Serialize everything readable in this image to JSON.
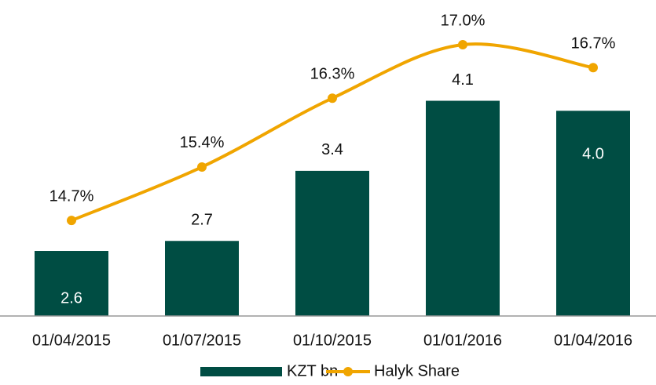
{
  "chart_data": {
    "type": "bar_line",
    "categories": [
      "01/04/2015",
      "01/07/2015",
      "01/10/2015",
      "01/01/2016",
      "01/04/2016"
    ],
    "series": [
      {
        "name": "KZT bn",
        "type": "bar",
        "color": "#004d43",
        "values": [
          2.6,
          2.7,
          3.4,
          4.1,
          4.0
        ],
        "value_labels": [
          "2.6",
          "2.7",
          "3.4",
          "4.1",
          "4.0"
        ]
      },
      {
        "name": "Halyk Share",
        "type": "line",
        "axis": "y2",
        "color": "#f0a500",
        "values": [
          14.7,
          15.4,
          16.3,
          17.0,
          16.7
        ],
        "value_labels": [
          "14.7%",
          "15.4%",
          "16.3%",
          "17.0%",
          "16.7%"
        ]
      }
    ],
    "ylim": [
      1.95,
      4.95
    ],
    "y2lim": [
      13.45,
      17.38
    ],
    "legend": "bottom"
  }
}
